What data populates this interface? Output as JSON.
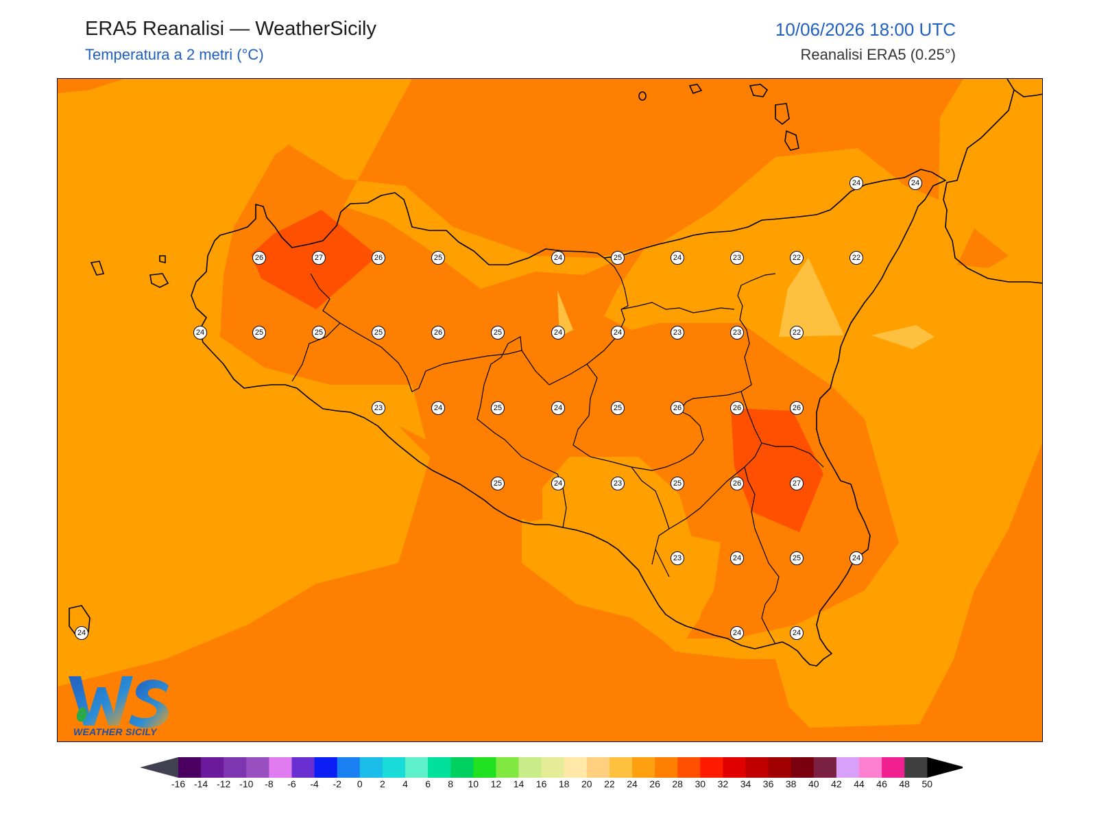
{
  "header": {
    "title": "ERA5 Reanalisi — WeatherSicily",
    "subtitle": "Temperatura a 2 metri (°C)",
    "datetime": "10/06/2026 18:00 UTC",
    "source": "Reanalisi ERA5 (0.25°)"
  },
  "logo": {
    "letters": "WS",
    "caption": "WEATHER SICILY"
  },
  "stations": [
    {
      "value": "26"
    },
    {
      "value": "27"
    },
    {
      "value": "26"
    },
    {
      "value": "25"
    },
    {
      "value": "24"
    },
    {
      "value": "25"
    },
    {
      "value": "24"
    },
    {
      "value": "23"
    },
    {
      "value": "22"
    },
    {
      "value": "22"
    },
    {
      "value": "24"
    },
    {
      "value": "25"
    },
    {
      "value": "25"
    },
    {
      "value": "25"
    },
    {
      "value": "26"
    },
    {
      "value": "25"
    },
    {
      "value": "24"
    },
    {
      "value": "24"
    },
    {
      "value": "23"
    },
    {
      "value": "23"
    },
    {
      "value": "22"
    },
    {
      "value": "23"
    },
    {
      "value": "24"
    },
    {
      "value": "25"
    },
    {
      "value": "24"
    },
    {
      "value": "25"
    },
    {
      "value": "26"
    },
    {
      "value": "26"
    },
    {
      "value": "26"
    },
    {
      "value": "25"
    },
    {
      "value": "24"
    },
    {
      "value": "23"
    },
    {
      "value": "25"
    },
    {
      "value": "26"
    },
    {
      "value": "27"
    },
    {
      "value": "23"
    },
    {
      "value": "24"
    },
    {
      "value": "25"
    },
    {
      "value": "24"
    },
    {
      "value": "24"
    },
    {
      "value": "24"
    },
    {
      "value": "24"
    },
    {
      "value": "24"
    },
    {
      "value": "24"
    }
  ],
  "colorbar": {
    "ticks": [
      "-16",
      "-14",
      "-12",
      "-10",
      "-8",
      "-6",
      "-4",
      "-2",
      "0",
      "2",
      "4",
      "6",
      "8",
      "10",
      "12",
      "14",
      "16",
      "18",
      "20",
      "22",
      "24",
      "26",
      "28",
      "30",
      "32",
      "34",
      "36",
      "38",
      "40",
      "42",
      "44",
      "46",
      "48",
      "50"
    ],
    "colors": [
      "#4a0060",
      "#6a1a9a",
      "#7e35b0",
      "#9a4fc0",
      "#e07cf0",
      "#6a2fd0",
      "#0a1ef5",
      "#1a7ff0",
      "#1abde8",
      "#1adcd8",
      "#5ef0c8",
      "#00e09a",
      "#00d060",
      "#20e020",
      "#80e840",
      "#c8ec88",
      "#e4ec98",
      "#ffe8a8",
      "#ffd080",
      "#ffc040",
      "#ffa010",
      "#ff8000",
      "#ff5000",
      "#ff1a00",
      "#e00000",
      "#c00000",
      "#a00000",
      "#7a0010",
      "#7a2040",
      "#d8a0f8",
      "#ff80d0",
      "#f02090",
      "#808080",
      "#404040"
    ],
    "under_color": "#404050",
    "over_color": "#000000"
  },
  "colors": {
    "level_20_22": "#ffc040",
    "level_22_24": "#ffa000",
    "level_24_26": "#ff8000",
    "level_26_28": "#ff5000",
    "coast": "#000000"
  }
}
